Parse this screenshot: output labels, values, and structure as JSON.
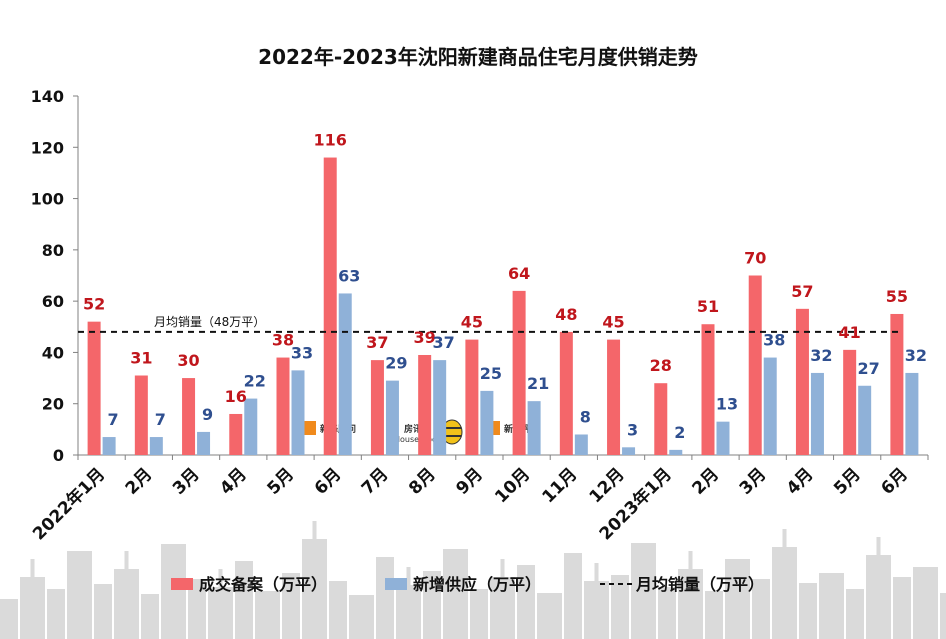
{
  "chart_data": {
    "type": "bar",
    "title": "2022年-2023年沈阳新建商品住宅月度供销走势",
    "categories": [
      "2022年1月",
      "2月",
      "3月",
      "4月",
      "5月",
      "6月",
      "7月",
      "8月",
      "9月",
      "10月",
      "11月",
      "12月",
      "2023年1月",
      "2月",
      "3月",
      "4月",
      "5月",
      "6月"
    ],
    "series": [
      {
        "name": "成交备案（万平）",
        "color": "#f4666a",
        "label_color": "#c0161c",
        "values": [
          52,
          31,
          30,
          16,
          38,
          116,
          37,
          39,
          45,
          64,
          48,
          45,
          28,
          51,
          70,
          57,
          41,
          55
        ]
      },
      {
        "name": "新增供应（万平）",
        "color": "#8fb1d8",
        "label_color": "#2f4f8f",
        "values": [
          7,
          7,
          9,
          22,
          33,
          63,
          29,
          37,
          25,
          21,
          8,
          3,
          2,
          13,
          38,
          32,
          27,
          32
        ]
      }
    ],
    "average_line": {
      "name": "月均销量（万平）",
      "value": 48,
      "label": "月均销量（48万平）"
    },
    "ylim": [
      0,
      140
    ],
    "yticks": [
      0,
      20,
      40,
      60,
      80,
      100,
      120,
      140
    ],
    "xlabel": "",
    "ylabel": "",
    "legend_position": "bottom",
    "grid": false
  },
  "watermarks": [
    {
      "text": "新峰顾问",
      "icon": "xinfeng-logo"
    },
    {
      "text": "房讯",
      "subtext": "House-Book",
      "icon": "bee-mascot"
    },
    {
      "text": "新峰评估",
      "icon": "xinfeng-logo"
    }
  ],
  "background": {
    "skyline_color": "#dadada"
  }
}
